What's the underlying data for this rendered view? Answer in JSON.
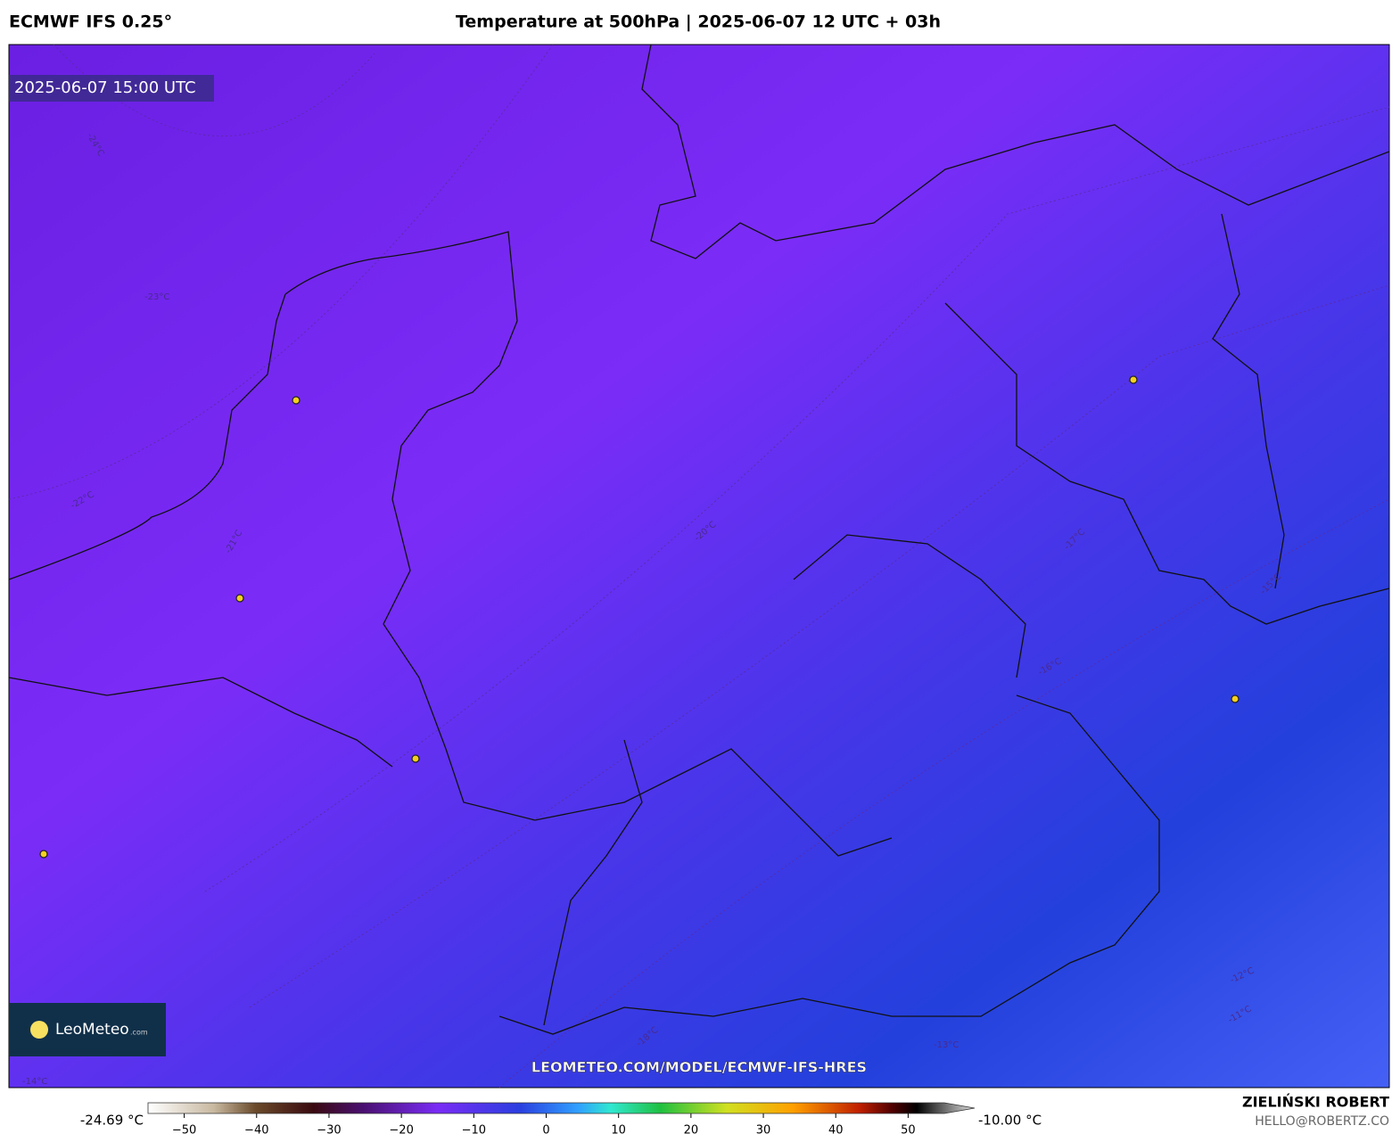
{
  "header": {
    "model": "ECMWF IFS 0.25°",
    "title": "Temperature at 500hPa | 2025-06-07 12 UTC + 03h"
  },
  "map": {
    "valid_time": "2025-06-07 15:00 UTC",
    "contour_labels": [
      "-24°C",
      "-23°C",
      "-22°C",
      "-21°C",
      "-20°C",
      "-18°C",
      "-17°C",
      "-16°C",
      "-15°C",
      "-14°C",
      "-13°C",
      "-12°C",
      "-11°C"
    ],
    "logo": "LeoMeteo",
    "logo_suffix": ".com",
    "url": "LEOMETEO.COM/MODEL/ECMWF-IFS-HRES"
  },
  "colorbar": {
    "min_label": "-24.69 °C",
    "max_label": "-10.00 °C",
    "lim": [
      -55,
      55
    ],
    "ticks": [
      {
        "value": -50,
        "label": "−50"
      },
      {
        "value": -40,
        "label": "−40"
      },
      {
        "value": -30,
        "label": "−30"
      },
      {
        "value": -20,
        "label": "−20"
      },
      {
        "value": -10,
        "label": "−10"
      },
      0,
      10,
      20,
      30,
      40,
      50
    ]
  },
  "footer": {
    "author": "ZIELIŃSKI ROBERT",
    "email": "HELLO@ROBERTZ.CO"
  }
}
